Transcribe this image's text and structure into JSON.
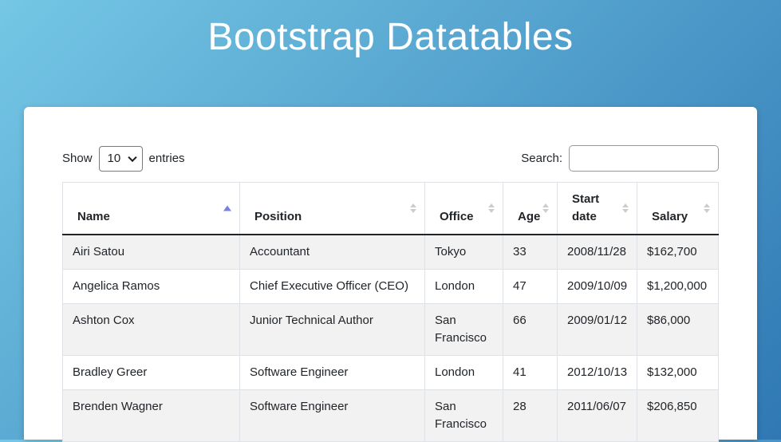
{
  "header": {
    "title": "Bootstrap Datatables"
  },
  "controls": {
    "show_label": "Show",
    "entries_label": "entries",
    "length_value": "10",
    "search_label": "Search:",
    "search_value": ""
  },
  "table": {
    "columns": [
      {
        "slug": "name",
        "label": "Name",
        "sort": "asc"
      },
      {
        "slug": "position",
        "label": "Position",
        "sort": "none"
      },
      {
        "slug": "office",
        "label": "Office",
        "sort": "none"
      },
      {
        "slug": "age",
        "label": "Age",
        "sort": "none"
      },
      {
        "slug": "start-date",
        "label": "Start date",
        "sort": "none"
      },
      {
        "slug": "salary",
        "label": "Salary",
        "sort": "none"
      }
    ],
    "rows": [
      [
        "Airi Satou",
        "Accountant",
        "Tokyo",
        "33",
        "2008/11/28",
        "$162,700"
      ],
      [
        "Angelica Ramos",
        "Chief Executive Officer (CEO)",
        "London",
        "47",
        "2009/10/09",
        "$1,200,000"
      ],
      [
        "Ashton Cox",
        "Junior Technical Author",
        "San Francisco",
        "66",
        "2009/01/12",
        "$86,000"
      ],
      [
        "Bradley Greer",
        "Software Engineer",
        "London",
        "41",
        "2012/10/13",
        "$132,000"
      ],
      [
        "Brenden Wagner",
        "Software Engineer",
        "San Francisco",
        "28",
        "2011/06/07",
        "$206,850"
      ]
    ]
  },
  "colors": {
    "gradient_start": "#75c7e5",
    "gradient_end": "#2f78b4",
    "sort_active": "#7582e8",
    "sort_inactive": "#cdcdcd",
    "stripe": "#f2f2f2",
    "text": "#212529",
    "cell_border": "#dee2e6",
    "header_border": "#212529"
  }
}
